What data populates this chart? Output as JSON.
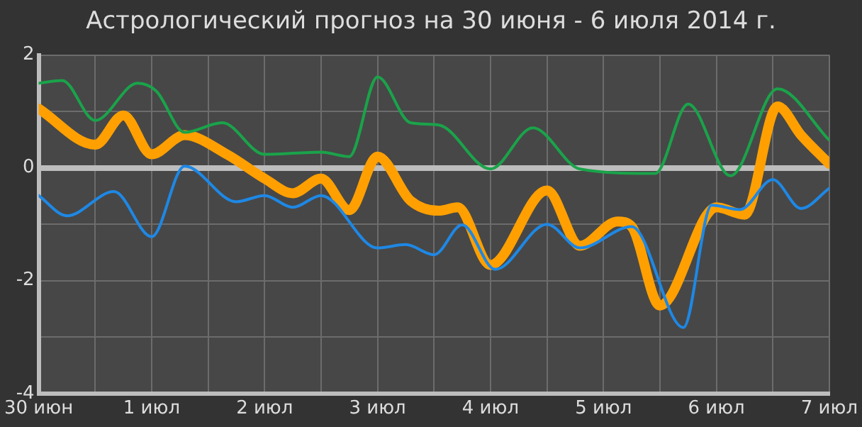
{
  "chart_data": {
    "type": "line",
    "title": "Астрологический прогноз на 30 июня  - 6 июля 2014 г.",
    "xlim": [
      "2014-06-30",
      "2014-07-07"
    ],
    "xticks": [
      {
        "value": "2014-06-30",
        "label": "30 июн"
      },
      {
        "value": "2014-06-30T12:00",
        "label": null
      },
      {
        "value": "2014-07-01",
        "label": "1 июл"
      },
      {
        "value": "2014-07-01T12:00",
        "label": null
      },
      {
        "value": "2014-07-02",
        "label": "2 июл"
      },
      {
        "value": "2014-07-02T12:00",
        "label": null
      },
      {
        "value": "2014-07-03",
        "label": "3 июл"
      },
      {
        "value": "2014-07-03T12:00",
        "label": null
      },
      {
        "value": "2014-07-04",
        "label": "4 июл"
      },
      {
        "value": "2014-07-04T12:00",
        "label": null
      },
      {
        "value": "2014-07-05",
        "label": "5 июл"
      },
      {
        "value": "2014-07-05T12:00",
        "label": null
      },
      {
        "value": "2014-07-06",
        "label": "6 июл"
      },
      {
        "value": "2014-07-06T12:00",
        "label": null
      },
      {
        "value": "2014-07-07",
        "label": "7 июл"
      }
    ],
    "ylim": [
      -4,
      2
    ],
    "yticks": [
      -4,
      {
        "value": -3,
        "label": null
      },
      -2,
      {
        "value": -1,
        "label": null
      },
      0,
      {
        "value": 1,
        "label": null
      },
      2
    ],
    "grid": true,
    "legend": false,
    "marker": "none",
    "line_style": "solid",
    "series": [
      {
        "color": "#1aa34a",
        "x": [
          "2014-06-30T00:00",
          "2014-06-30T05:00",
          "2014-06-30T12:00",
          "2014-06-30T21:00",
          "2014-07-01T01:00",
          "2014-07-01T07:00",
          "2014-07-01T15:00",
          "2014-07-02T00:00",
          "2014-07-02T12:00",
          "2014-07-02T18:00",
          "2014-07-03T00:00",
          "2014-07-03T07:00",
          "2014-07-03T13:00",
          "2014-07-04T00:00",
          "2014-07-04T09:00",
          "2014-07-04T19:00",
          "2014-07-05T11:00",
          "2014-07-05T18:00",
          "2014-07-06T03:00",
          "2014-07-06T13:00",
          "2014-07-07T00:00"
        ],
        "values": [
          1.5,
          1.55,
          0.84,
          1.5,
          1.36,
          0.63,
          0.8,
          0.24,
          0.28,
          0.2,
          1.61,
          0.8,
          0.76,
          -0.02,
          0.71,
          -0.02,
          -0.1,
          1.13,
          -0.14,
          1.4,
          0.49
        ]
      },
      {
        "color": "#1e88e5",
        "x": [
          "2014-06-30T00:00",
          "2014-06-30T06:00",
          "2014-06-30T16:00",
          "2014-07-01T00:00",
          "2014-07-01T07:00",
          "2014-07-01T18:00",
          "2014-07-02T00:00",
          "2014-07-02T06:00",
          "2014-07-02T12:00",
          "2014-07-03T00:00",
          "2014-07-03T06:00",
          "2014-07-03T12:00",
          "2014-07-03T18:00",
          "2014-07-04T01:00",
          "2014-07-04T12:00",
          "2014-07-04T19:00",
          "2014-07-05T06:00",
          "2014-07-05T17:00",
          "2014-07-05T23:00",
          "2014-07-06T05:00",
          "2014-07-06T12:00",
          "2014-07-06T18:00",
          "2014-07-07T00:00"
        ],
        "values": [
          -0.49,
          -0.85,
          -0.42,
          -1.22,
          0.03,
          -0.6,
          -0.49,
          -0.7,
          -0.49,
          -1.42,
          -1.36,
          -1.54,
          -1.01,
          -1.8,
          -1.0,
          -1.42,
          -1.04,
          -2.83,
          -0.66,
          -0.74,
          -0.21,
          -0.72,
          -0.36
        ]
      },
      {
        "color": "#ffa000",
        "x": [
          "2014-06-30T00:00",
          "2014-06-30T12:00",
          "2014-06-30T18:00",
          "2014-07-01T00:00",
          "2014-07-01T07:00",
          "2014-07-01T16:00",
          "2014-07-02T00:00",
          "2014-07-02T06:00",
          "2014-07-02T12:00",
          "2014-07-02T18:00",
          "2014-07-03T00:00",
          "2014-07-03T07:00",
          "2014-07-03T13:00",
          "2014-07-03T17:00",
          "2014-07-04T00:00",
          "2014-07-04T12:00",
          "2014-07-04T19:00",
          "2014-07-05T03:00",
          "2014-07-05T06:00",
          "2014-07-05T12:00",
          "2014-07-06T00:00",
          "2014-07-06T06:00",
          "2014-07-06T13:00",
          "2014-07-06T18:00",
          "2014-07-07T00:00"
        ],
        "values": [
          1.05,
          0.41,
          0.93,
          0.24,
          0.58,
          0.24,
          -0.19,
          -0.45,
          -0.19,
          -0.75,
          0.2,
          -0.58,
          -0.76,
          -0.7,
          -1.72,
          -0.4,
          -1.38,
          -0.95,
          -1.04,
          -2.44,
          -0.7,
          -0.83,
          1.09,
          0.58,
          0.07
        ]
      }
    ]
  }
}
